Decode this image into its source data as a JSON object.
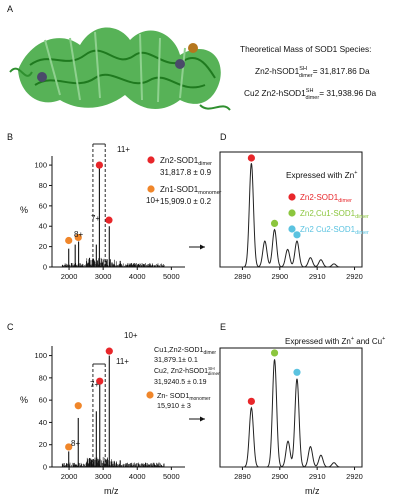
{
  "panel_labels": {
    "a": "A",
    "b": "B",
    "c": "C",
    "d": "D",
    "e": "E"
  },
  "theory": {
    "heading": "Theoretical Mass of SOD1 Species:",
    "line1_prefix": "Zn2-hSOD1",
    "line1_sup": "SH",
    "line1_sub": "dimer",
    "line1_value": "= 31,817.86 Da",
    "line2_prefix": "Cu2 Zn2-hSOD1",
    "line2_sup": "SH",
    "line2_sub": "dimer",
    "line2_value": "= 31,938.96 Da"
  },
  "colors": {
    "red": "#e8262a",
    "orange": "#f0862a",
    "green": "#8cc63e",
    "blue": "#5bc3e0",
    "protein": "#3aa43a",
    "zinc": "#4a4a6a",
    "copper": "#b5771e"
  },
  "panel_b": {
    "ylabel": "%",
    "yticks": [
      "0",
      "20",
      "40",
      "60",
      "80",
      "100"
    ],
    "xticks": [
      "2000",
      "3000",
      "4000",
      "5000"
    ],
    "charge_labels": {
      "c8": "8+",
      "c7": "7+",
      "c11": "11+",
      "c10": "10+"
    },
    "legend": [
      {
        "name": "Zn2-SOD1",
        "sub": "dimer",
        "value": "31,817.8 ± 0.9",
        "color": "red"
      },
      {
        "name": "Zn1-SOD1",
        "sub": "monomer",
        "value": "15,909.0 ± 0.2",
        "color": "orange"
      }
    ]
  },
  "panel_c": {
    "ylabel": "%",
    "xlabel": "m/z",
    "yticks": [
      "0",
      "20",
      "40",
      "60",
      "80",
      "100"
    ],
    "xticks": [
      "2000",
      "3000",
      "4000",
      "5000"
    ],
    "charge_labels": {
      "c8": "8+",
      "c7": "7+",
      "c11": "11+",
      "c10": "10+"
    },
    "legend": {
      "l1_name": "Cu1,Zn2-SOD1",
      "l1_sub": "dimer",
      "l1_value": "31,879.1± 0.1",
      "l2_name": "Cu2, Zn2-hSOD1",
      "l2_sup": "SH",
      "l2_sub": "dimer",
      "l2_value": "31,9240.5 ± 0.19",
      "l3_name": "Zn- SOD1",
      "l3_sub": "monomer",
      "l3_value": "15,910 ± 3"
    }
  },
  "panel_d": {
    "title": "Expressed with Zn",
    "title_sup": "+",
    "xticks": [
      "2890",
      "2900",
      "2910",
      "2920"
    ],
    "legend": [
      {
        "name": "Zn2-SOD1",
        "sub": "dimer",
        "color": "red"
      },
      {
        "name": "Zn2,Cu1-SOD1",
        "sub": "dimer",
        "color": "green"
      },
      {
        "name": "Zn2 Cu2-SOD1",
        "sub": "dimer",
        "color": "blue"
      }
    ]
  },
  "panel_e": {
    "title_a": "Expressed with Zn",
    "title_sup1": "+",
    "title_b": " and Cu",
    "title_sup2": "+",
    "xticks": [
      "2890",
      "2900",
      "2910",
      "2920"
    ],
    "xlabel": "m/z"
  },
  "chart_data": [
    {
      "panel": "B",
      "type": "line",
      "xlabel": "",
      "ylabel": "%",
      "xlim": [
        1500,
        5400
      ],
      "ylim": [
        0,
        105
      ],
      "peaks": [
        {
          "mz": 1990,
          "intensity": 18
        },
        {
          "mz": 2180,
          "intensity": 22
        },
        {
          "mz": 2280,
          "intensity": 25
        },
        {
          "mz": 2600,
          "intensity": 9
        },
        {
          "mz": 2800,
          "intensity": 22
        },
        {
          "mz": 2890,
          "intensity": 100
        },
        {
          "mz": 3180,
          "intensity": 40
        },
        {
          "mz": 3500,
          "intensity": 6
        },
        {
          "mz": 4200,
          "intensity": 3
        }
      ],
      "markers": [
        {
          "mz": 1990,
          "intensity": 26,
          "color": "orange",
          "label": "8+"
        },
        {
          "mz": 2270,
          "intensity": 29,
          "color": "orange",
          "label": "7+"
        },
        {
          "mz": 2890,
          "intensity": 100,
          "color": "red",
          "label": "11+"
        },
        {
          "mz": 3170,
          "intensity": 46,
          "color": "red",
          "label": "10+"
        }
      ]
    },
    {
      "panel": "C",
      "type": "line",
      "xlabel": "m/z",
      "ylabel": "%",
      "xlim": [
        1500,
        5400
      ],
      "ylim": [
        0,
        105
      ],
      "peaks": [
        {
          "mz": 1990,
          "intensity": 14
        },
        {
          "mz": 2270,
          "intensity": 44
        },
        {
          "mz": 2600,
          "intensity": 8
        },
        {
          "mz": 2800,
          "intensity": 50
        },
        {
          "mz": 2900,
          "intensity": 75
        },
        {
          "mz": 3180,
          "intensity": 100
        },
        {
          "mz": 3500,
          "intensity": 6
        }
      ],
      "markers": [
        {
          "mz": 1990,
          "intensity": 18,
          "color": "orange",
          "label": "8+"
        },
        {
          "mz": 2270,
          "intensity": 55,
          "color": "orange",
          "label": "7+"
        },
        {
          "mz": 2900,
          "intensity": 77,
          "color": "red",
          "label": "11+"
        },
        {
          "mz": 3180,
          "intensity": 104,
          "color": "red",
          "label": "10+"
        }
      ]
    },
    {
      "panel": "D",
      "type": "line",
      "xlim": [
        2884,
        2922
      ],
      "ylim": [
        0,
        105
      ],
      "peaks": [
        {
          "mz": 2892.4,
          "intensity": 100
        },
        {
          "mz": 2896.0,
          "intensity": 25
        },
        {
          "mz": 2898.6,
          "intensity": 36
        },
        {
          "mz": 2902.1,
          "intensity": 17
        },
        {
          "mz": 2904.6,
          "intensity": 25
        },
        {
          "mz": 2908.2,
          "intensity": 9
        },
        {
          "mz": 2911.0,
          "intensity": 7
        },
        {
          "mz": 2914.5,
          "intensity": 3
        }
      ],
      "markers": [
        {
          "mz": 2892.4,
          "intensity": 105,
          "color": "red"
        },
        {
          "mz": 2898.6,
          "intensity": 42,
          "color": "green"
        },
        {
          "mz": 2904.6,
          "intensity": 31,
          "color": "blue"
        }
      ]
    },
    {
      "panel": "E",
      "type": "line",
      "xlabel": "m/z",
      "xlim": [
        2884,
        2922
      ],
      "ylim": [
        0,
        105
      ],
      "peaks": [
        {
          "mz": 2892.4,
          "intensity": 55
        },
        {
          "mz": 2898.6,
          "intensity": 100
        },
        {
          "mz": 2902.2,
          "intensity": 24
        },
        {
          "mz": 2904.6,
          "intensity": 82
        },
        {
          "mz": 2908.2,
          "intensity": 19
        },
        {
          "mz": 2911.0,
          "intensity": 11
        },
        {
          "mz": 2914.5,
          "intensity": 4
        }
      ],
      "markers": [
        {
          "mz": 2892.4,
          "intensity": 61,
          "color": "red"
        },
        {
          "mz": 2898.6,
          "intensity": 106,
          "color": "green"
        },
        {
          "mz": 2904.6,
          "intensity": 88,
          "color": "blue"
        }
      ]
    }
  ]
}
